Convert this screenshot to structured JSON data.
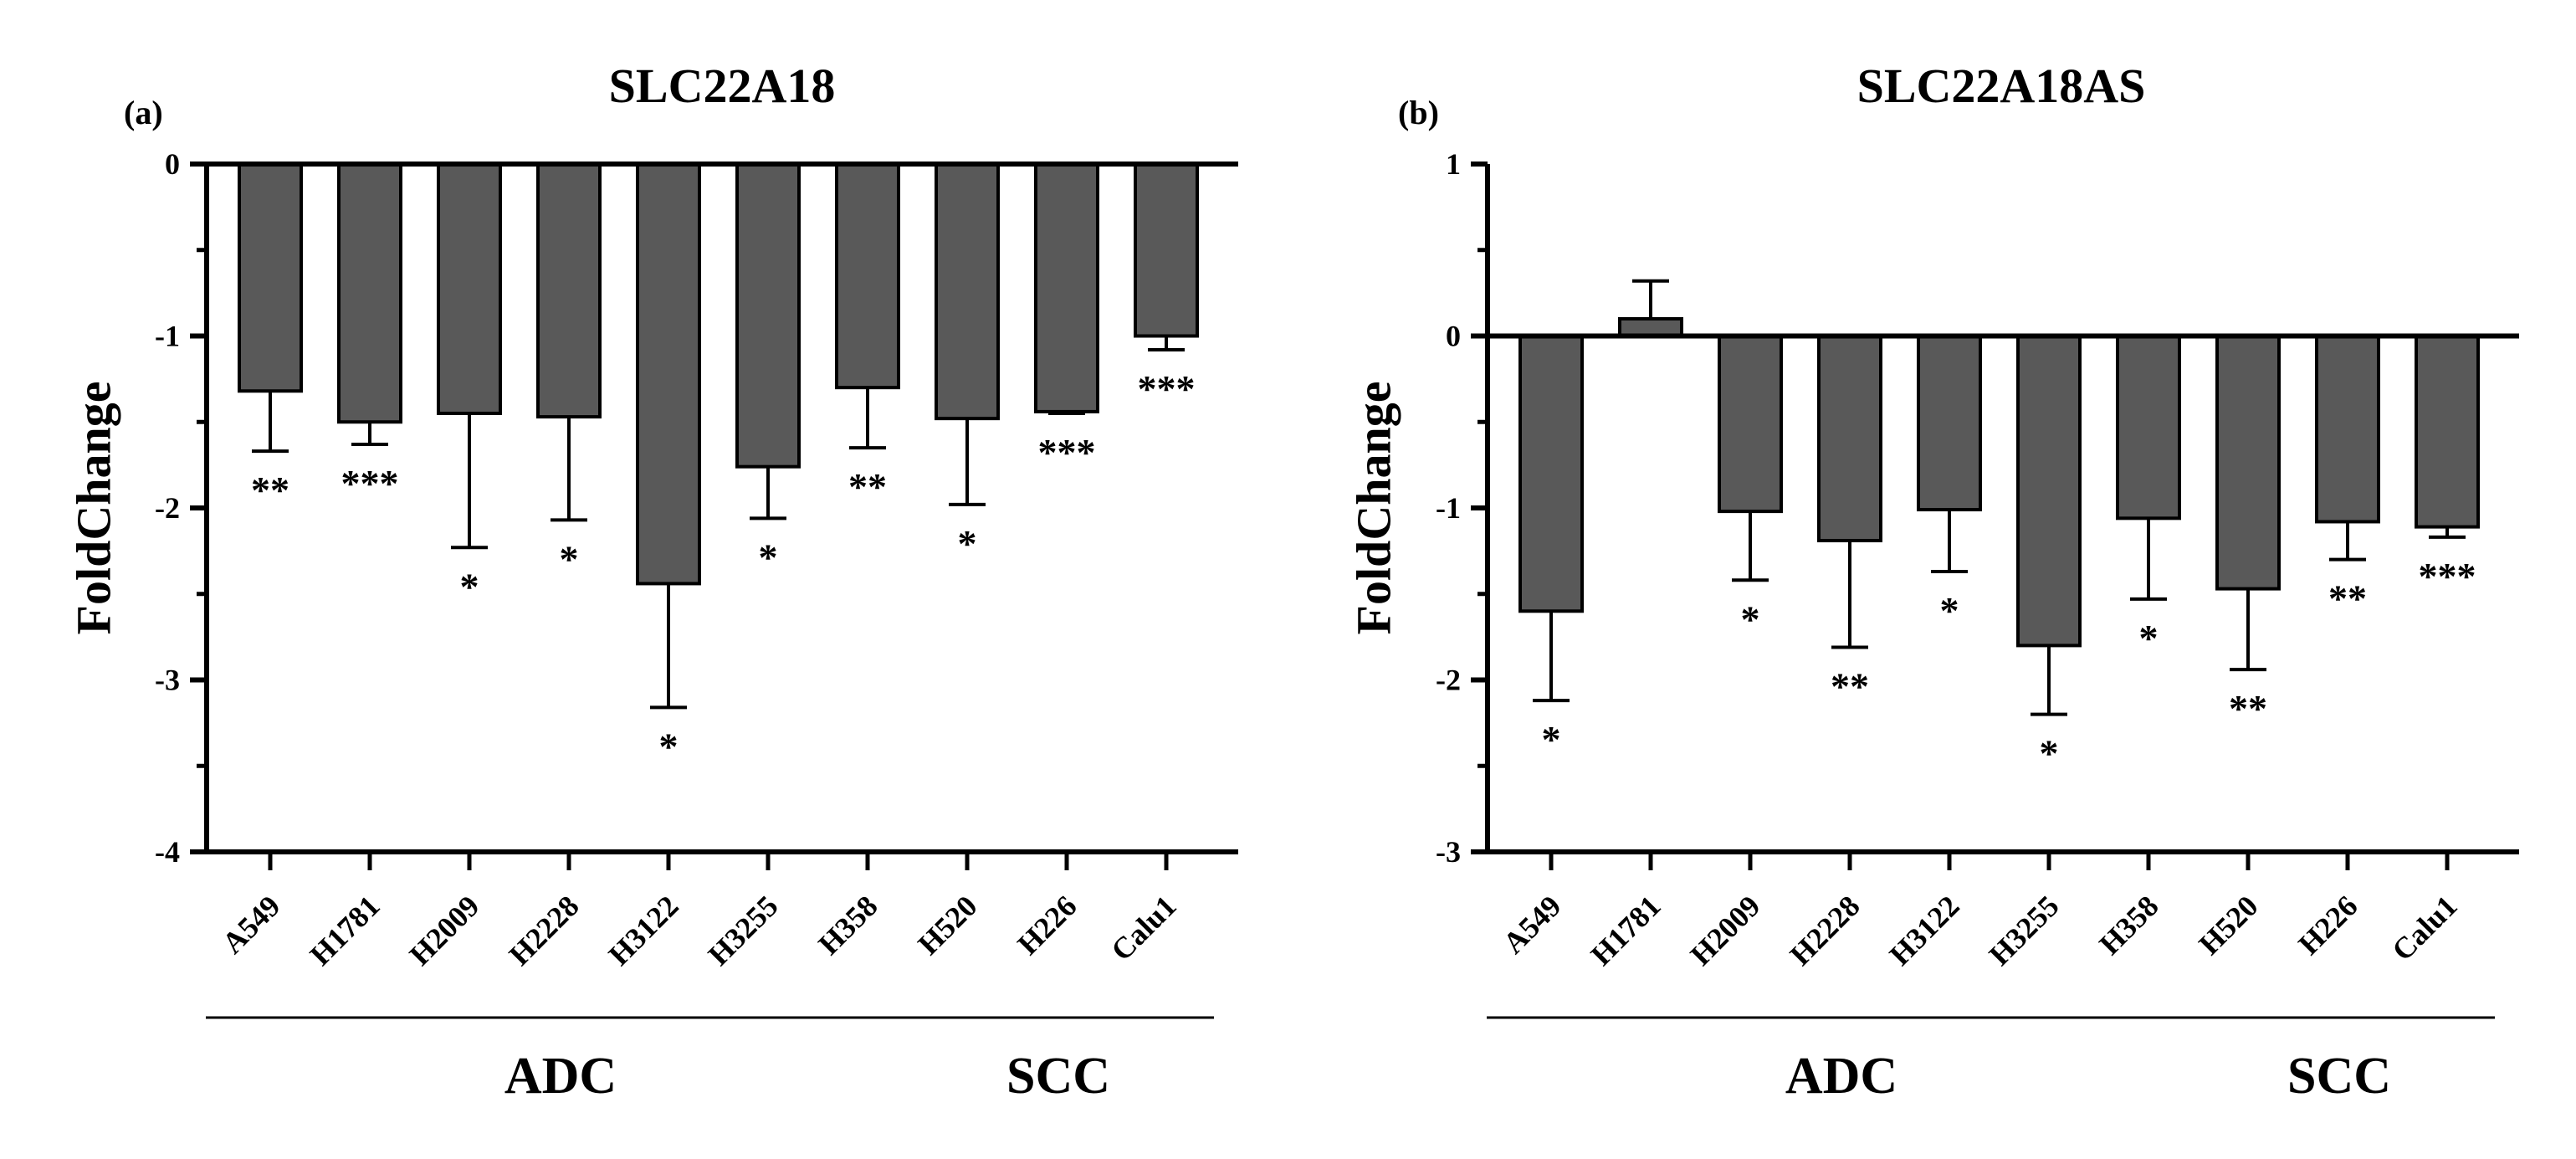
{
  "chart_data": [
    {
      "type": "bar",
      "panel_label": "(a)",
      "title": "SLC22A18",
      "ylabel": "FoldChange",
      "xlabel": "",
      "ylim": [
        -4,
        0
      ],
      "yticks": [
        0,
        -1,
        -2,
        -3,
        -4
      ],
      "categories": [
        "A549",
        "H1781",
        "H2009",
        "H2228",
        "H3122",
        "H3255",
        "H358",
        "H520",
        "H226",
        "Calu1"
      ],
      "series": [
        {
          "name": "FoldChange",
          "values": [
            -1.32,
            -1.5,
            -1.45,
            -1.47,
            -2.44,
            -1.76,
            -1.3,
            -1.48,
            -1.44,
            -1.0
          ],
          "error": [
            0.35,
            0.13,
            0.78,
            0.6,
            0.72,
            0.3,
            0.35,
            0.5,
            0.01,
            0.08
          ],
          "significance": [
            "**",
            "***",
            "*",
            "*",
            "*",
            "*",
            "**",
            "*",
            "***",
            "***"
          ]
        }
      ],
      "groups": [
        {
          "label": "ADC",
          "members": [
            "A549",
            "H1781",
            "H2009",
            "H2228",
            "H3122",
            "H3255",
            "H358"
          ]
        },
        {
          "label": "SCC",
          "members": [
            "H520",
            "H226",
            "Calu1"
          ]
        }
      ],
      "bar_color": "#595959"
    },
    {
      "type": "bar",
      "panel_label": "(b)",
      "title": "SLC22A18AS",
      "ylabel": "FoldChange",
      "xlabel": "",
      "ylim": [
        -3,
        1
      ],
      "yticks": [
        1,
        0,
        -1,
        -2,
        -3
      ],
      "categories": [
        "A549",
        "H1781",
        "H2009",
        "H2228",
        "H3122",
        "H3255",
        "H358",
        "H520",
        "H226",
        "Calu1"
      ],
      "series": [
        {
          "name": "FoldChange",
          "values": [
            -1.6,
            0.1,
            -1.02,
            -1.19,
            -1.01,
            -1.8,
            -1.06,
            -1.47,
            -1.08,
            -1.11
          ],
          "error": [
            0.52,
            0.22,
            0.4,
            0.62,
            0.36,
            0.4,
            0.47,
            0.47,
            0.22,
            0.06
          ],
          "significance": [
            "*",
            "",
            "*",
            "**",
            "*",
            "*",
            "*",
            "**",
            "**",
            "***"
          ]
        }
      ],
      "groups": [
        {
          "label": "ADC",
          "members": [
            "A549",
            "H1781",
            "H2009",
            "H2228",
            "H3122",
            "H3255",
            "H358"
          ]
        },
        {
          "label": "SCC",
          "members": [
            "H520",
            "H226",
            "Calu1"
          ]
        }
      ],
      "bar_color": "#595959"
    }
  ]
}
